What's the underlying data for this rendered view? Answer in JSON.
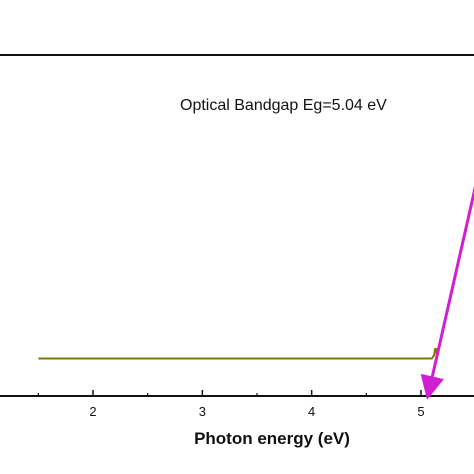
{
  "chart_data": {
    "type": "line",
    "title": "",
    "xlabel": "Photon energy (eV)",
    "ylabel": "",
    "xlim": [
      1.5,
      5.5
    ],
    "ylim": [
      0,
      1
    ],
    "x_ticks": [
      2,
      3,
      4,
      5
    ],
    "x_tick_labels": [
      "2",
      "3",
      "4",
      "5"
    ],
    "grid": false,
    "series": [
      {
        "color": "#807800",
        "x": [
          1.5,
          5.1,
          5.12,
          5.13,
          5.14,
          5.15
        ],
        "y": [
          0.11,
          0.11,
          0.12,
          0.14,
          0.13,
          0.14
        ]
      }
    ],
    "fit_line": {
      "color": "#d21ed2",
      "x": [
        5.04,
        5.5
      ],
      "y": [
        0.0,
        0.5
      ]
    },
    "annotation": "Optical Bandgap Eg=5.04 eV"
  }
}
